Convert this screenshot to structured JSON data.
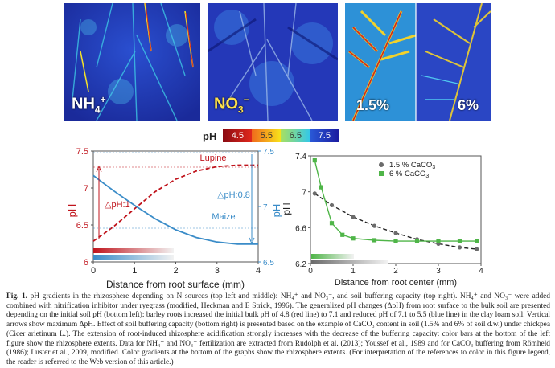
{
  "panels": {
    "nh4": {
      "label": "NH",
      "sub": "4",
      "sup": "+"
    },
    "no3": {
      "label": "NO",
      "sub": "3",
      "sup": "−"
    },
    "caco3_low": "1.5%",
    "caco3_high": "6%"
  },
  "ph_legend": {
    "label": "pH",
    "items": [
      {
        "value": "4.5",
        "color": "#c0141c"
      },
      {
        "value": "5.5",
        "color": "#f7e21b"
      },
      {
        "value": "6.5",
        "color": "#34d4e8"
      },
      {
        "value": "7.5",
        "color": "#1c1ca0"
      }
    ]
  },
  "chart_data": [
    {
      "type": "line",
      "xlabel": "Distance from root surface (mm)",
      "ylabel_left": "pH",
      "ylabel_right": "pH",
      "xlim": [
        0,
        4
      ],
      "ylim_left": [
        6,
        7.5
      ],
      "ylim_right": [
        6.5,
        7.5
      ],
      "x_ticks": [
        "0",
        "1",
        "2",
        "3",
        "4"
      ],
      "y_ticks_left": [
        "6",
        "6.5",
        "7",
        "7.5"
      ],
      "y_ticks_right": [
        "6.5",
        "7",
        "7.5"
      ],
      "series": [
        {
          "name": "Lupine",
          "axis": "left",
          "color": "#c0141c",
          "style": "dashed",
          "x": [
            0,
            0.5,
            1,
            1.5,
            2,
            2.5,
            3,
            3.5,
            4
          ],
          "y": [
            6.28,
            6.48,
            6.72,
            6.95,
            7.12,
            7.23,
            7.29,
            7.31,
            7.31
          ]
        },
        {
          "name": "Maize",
          "axis": "right",
          "color": "#3a8cc8",
          "style": "solid",
          "x": [
            0,
            0.5,
            1,
            1.5,
            2,
            2.5,
            3,
            3.5,
            4
          ],
          "y": [
            7.28,
            7.14,
            7.01,
            6.89,
            6.79,
            6.72,
            6.68,
            6.66,
            6.66
          ]
        }
      ],
      "annotations": {
        "left": "△pH:1",
        "right": "△pH:0.8"
      }
    },
    {
      "type": "scatter",
      "xlabel": "Distance from root center (mm)",
      "ylabel": "pH",
      "xlim": [
        0,
        4
      ],
      "ylim": [
        6.2,
        7.4
      ],
      "x_ticks": [
        "0",
        "1",
        "2",
        "3",
        "4"
      ],
      "y_ticks": [
        "6.2",
        "6.6",
        "7",
        "7.4"
      ],
      "series": [
        {
          "name": "1.5 % CaCO",
          "sub": "3",
          "color": "#6b6b6b",
          "marker": "circle",
          "x": [
            0.1,
            0.5,
            1,
            1.5,
            2,
            2.5,
            3,
            3.5,
            3.9
          ],
          "y": [
            6.98,
            6.85,
            6.72,
            6.62,
            6.54,
            6.47,
            6.42,
            6.38,
            6.36
          ]
        },
        {
          "name": "6 %  CaCO",
          "sub": "3",
          "color": "#4fb548",
          "marker": "square",
          "x": [
            0.1,
            0.25,
            0.5,
            0.75,
            1,
            1.5,
            2,
            2.5,
            3,
            3.5,
            3.9
          ],
          "y": [
            7.35,
            7.05,
            6.65,
            6.52,
            6.48,
            6.46,
            6.45,
            6.45,
            6.45,
            6.45,
            6.45
          ]
        }
      ]
    }
  ],
  "caption": {
    "fig": "Fig. 1.",
    "text": " pH gradients in the rhizosphere depending on N sources (top left and middle): NH₄⁺ and NO₃⁻, and soil buffering capacity (top right). NH₄⁺ and NO₃⁻ were added combined with nitrification inhibitor under ryegrass (modified, Heckman and E Strick, 1996). The generalized pH changes (ΔpH) from root surface to the bulk soil are presented depending on the initial soil pH (bottom left): barley roots increased the initial bulk pH of 4.8 (red line) to 7.1 and reduced pH of 7.1 to 5.5 (blue line) in the clay loam soil. Vertical arrows show maximum ΔpH. Effect of soil buffering capacity (bottom right) is presented based on the example of CaCO₃ content in soil (1.5% and 6% of soil d.w.) under chickpea (Cicer arietinum L.). The extension of root-induced rhizosphere acidification strongly increases with the decrease of the buffering capacity: color bars at the bottom of the left figure show the rhizosphere extents. Data for NH₄⁺ and NO₃⁻ fertilization are extracted from Rudolph et al. (2013); Youssef et al., 1989 and for CaCO₃ buffering from Römheld (1986); Luster et al., 2009, modified. Color gradients at the bottom of the graphs show the rhizosphere extents. (For interpretation of the references to color in this figure legend, the reader is referred to the Web version of this article.)"
  }
}
